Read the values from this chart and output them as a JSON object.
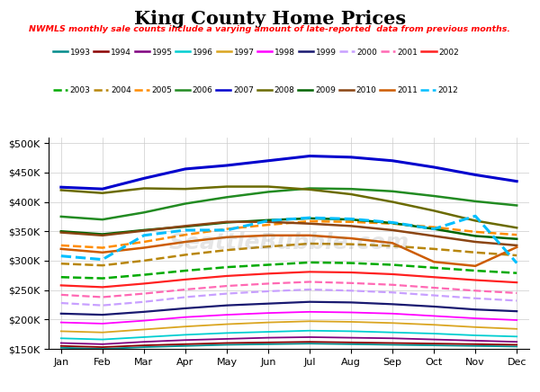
{
  "title": "King County Home Prices",
  "subtitle": "NWMLS monthly sale counts include a varying amount of late-reported  data from previous months.",
  "subtitle_color": "#FF0000",
  "background_color": "#FFFFFF",
  "watermark": "SeattleBubble.com",
  "months": [
    "Jan",
    "Feb",
    "Mar",
    "Apr",
    "May",
    "Jun",
    "Jul",
    "Aug",
    "Sep",
    "Oct",
    "Nov",
    "Dec"
  ],
  "ylim": [
    150000,
    510000
  ],
  "yticks": [
    150000,
    200000,
    250000,
    300000,
    350000,
    400000,
    450000,
    500000
  ],
  "series": {
    "1993": {
      "color": "#008B8B",
      "linestyle": "solid",
      "linewidth": 1.3,
      "values": [
        152000,
        150000,
        153000,
        155000,
        157000,
        158000,
        159000,
        158000,
        157000,
        156000,
        155000,
        154000
      ]
    },
    "1994": {
      "color": "#8B0000",
      "linestyle": "solid",
      "linewidth": 1.3,
      "values": [
        155000,
        153000,
        156000,
        158000,
        160000,
        161000,
        162000,
        161000,
        160000,
        159000,
        158000,
        157000
      ]
    },
    "1995": {
      "color": "#800080",
      "linestyle": "solid",
      "linewidth": 1.3,
      "values": [
        160000,
        158000,
        162000,
        165000,
        167000,
        169000,
        170000,
        169000,
        168000,
        166000,
        164000,
        162000
      ]
    },
    "1996": {
      "color": "#00CED1",
      "linestyle": "solid",
      "linewidth": 1.3,
      "values": [
        168000,
        166000,
        170000,
        174000,
        177000,
        179000,
        181000,
        180000,
        178000,
        176000,
        173000,
        171000
      ]
    },
    "1997": {
      "color": "#DAA520",
      "linestyle": "solid",
      "linewidth": 1.3,
      "values": [
        180000,
        178000,
        183000,
        188000,
        192000,
        195000,
        197000,
        196000,
        194000,
        191000,
        187000,
        184000
      ]
    },
    "1998": {
      "color": "#FF00FF",
      "linestyle": "solid",
      "linewidth": 1.3,
      "values": [
        195000,
        193000,
        198000,
        204000,
        208000,
        211000,
        213000,
        212000,
        210000,
        206000,
        202000,
        199000
      ]
    },
    "1999": {
      "color": "#191970",
      "linestyle": "solid",
      "linewidth": 1.6,
      "values": [
        210000,
        208000,
        213000,
        219000,
        224000,
        227000,
        230000,
        229000,
        226000,
        222000,
        217000,
        214000
      ]
    },
    "2000": {
      "color": "#C8A0FF",
      "linestyle": "dashed",
      "linewidth": 1.6,
      "values": [
        228000,
        224000,
        230000,
        238000,
        244000,
        248000,
        251000,
        249000,
        246000,
        241000,
        236000,
        232000
      ]
    },
    "2001": {
      "color": "#FF69B4",
      "linestyle": "dashed",
      "linewidth": 1.6,
      "values": [
        242000,
        238000,
        244000,
        251000,
        257000,
        261000,
        264000,
        262000,
        259000,
        254000,
        249000,
        245000
      ]
    },
    "2002": {
      "color": "#FF2020",
      "linestyle": "solid",
      "linewidth": 1.6,
      "values": [
        258000,
        255000,
        261000,
        268000,
        274000,
        278000,
        281000,
        280000,
        277000,
        272000,
        267000,
        263000
      ]
    },
    "2003": {
      "color": "#00AA00",
      "linestyle": "dashed",
      "linewidth": 1.8,
      "values": [
        272000,
        270000,
        276000,
        283000,
        289000,
        293000,
        297000,
        296000,
        293000,
        288000,
        283000,
        279000
      ]
    },
    "2004": {
      "color": "#B8860B",
      "linestyle": "dashed",
      "linewidth": 1.8,
      "values": [
        295000,
        292000,
        300000,
        310000,
        318000,
        324000,
        329000,
        328000,
        325000,
        320000,
        314000,
        309000
      ]
    },
    "2005": {
      "color": "#FF8C00",
      "linestyle": "dashed",
      "linewidth": 1.8,
      "values": [
        326000,
        322000,
        332000,
        344000,
        354000,
        361000,
        367000,
        366000,
        363000,
        357000,
        349000,
        344000
      ]
    },
    "2006": {
      "color": "#228B22",
      "linestyle": "solid",
      "linewidth": 1.8,
      "values": [
        375000,
        370000,
        382000,
        397000,
        408000,
        417000,
        423000,
        422000,
        418000,
        410000,
        401000,
        394000
      ]
    },
    "2007": {
      "color": "#0000CD",
      "linestyle": "solid",
      "linewidth": 2.2,
      "values": [
        425000,
        422000,
        440000,
        456000,
        462000,
        470000,
        478000,
        476000,
        470000,
        459000,
        446000,
        435000
      ]
    },
    "2008": {
      "color": "#6B6B00",
      "linestyle": "solid",
      "linewidth": 1.8,
      "values": [
        420000,
        415000,
        423000,
        422000,
        426000,
        426000,
        421000,
        413000,
        400000,
        385000,
        368000,
        356000
      ]
    },
    "2009": {
      "color": "#006400",
      "linestyle": "solid",
      "linewidth": 1.8,
      "values": [
        350000,
        345000,
        352000,
        358000,
        365000,
        369000,
        372000,
        370000,
        364000,
        354000,
        342000,
        337000
      ]
    },
    "2010": {
      "color": "#8B4513",
      "linestyle": "solid",
      "linewidth": 1.8,
      "values": [
        348000,
        343000,
        351000,
        359000,
        366000,
        366000,
        363000,
        359000,
        352000,
        342000,
        332000,
        326000
      ]
    },
    "2011": {
      "color": "#CD5C00",
      "linestyle": "solid",
      "linewidth": 1.8,
      "values": [
        320000,
        314000,
        322000,
        332000,
        340000,
        343000,
        343000,
        338000,
        330000,
        298000,
        291000,
        323000
      ]
    },
    "2012": {
      "color": "#00BFFF",
      "linestyle": "dashed",
      "linewidth": 2.2,
      "values": [
        308000,
        302000,
        343000,
        352000,
        352000,
        368000,
        373000,
        371000,
        365000,
        354000,
        376000,
        296000
      ]
    }
  }
}
